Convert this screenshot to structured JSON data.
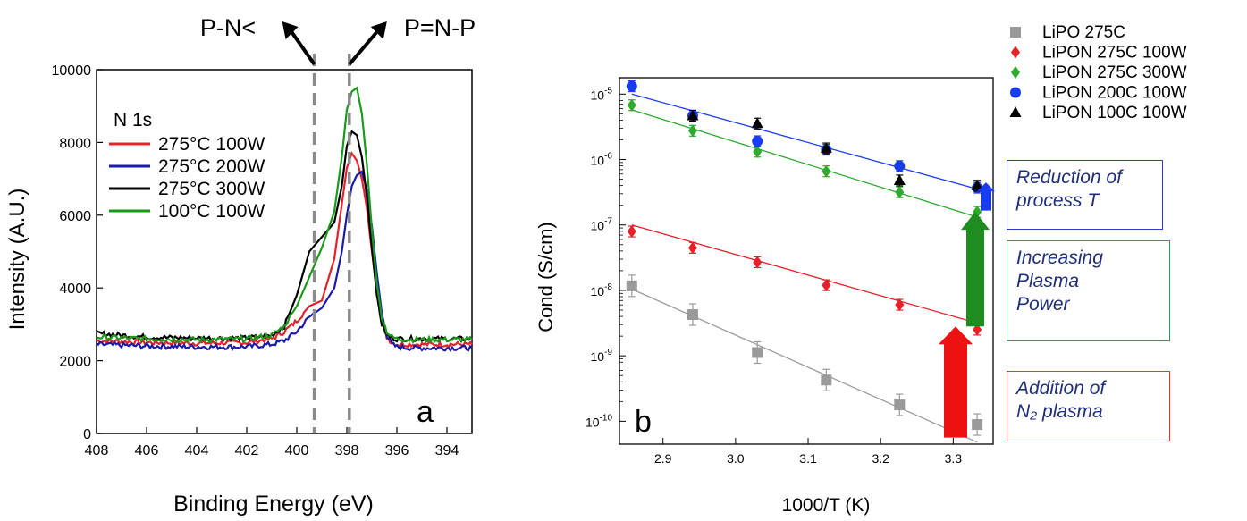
{
  "chart_data": [
    {
      "type": "line",
      "panel_label": "a",
      "inner_label": "N 1s",
      "xlabel": "Binding Energy (eV)",
      "ylabel": "Intensity (A.U.)",
      "xlim": [
        408,
        393
      ],
      "ylim": [
        0,
        10000
      ],
      "x_ticks": [
        "408",
        "406",
        "404",
        "402",
        "400",
        "398",
        "396",
        "394"
      ],
      "y_ticks": [
        "0",
        "2000",
        "4000",
        "6000",
        "8000",
        "10000"
      ],
      "annotations": [
        {
          "text": "P-N<",
          "x": 399.3
        },
        {
          "text": "P=N-P",
          "x": 397.9
        }
      ],
      "series": [
        {
          "name": "275°C 100W",
          "color": "#e8202a",
          "x": [
            408,
            406,
            404,
            402,
            401,
            400.5,
            400,
            399.5,
            399,
            398.5,
            398.2,
            398,
            397.8,
            397.6,
            397.4,
            397.2,
            397,
            396.8,
            396.6,
            396.4,
            396.2,
            396,
            395.5,
            395,
            394,
            393
          ],
          "y": [
            2550,
            2500,
            2480,
            2500,
            2600,
            2800,
            3100,
            3500,
            3650,
            4800,
            6300,
            7300,
            7700,
            7500,
            7000,
            6200,
            5000,
            3900,
            3100,
            2650,
            2500,
            2450,
            2450,
            2450,
            2450,
            2450
          ]
        },
        {
          "name": "275°C 200W",
          "color": "#1a1aa8",
          "x": [
            408,
            406,
            404,
            402,
            401,
            400.5,
            400,
            399.5,
            399,
            398.5,
            398.2,
            398,
            397.8,
            397.6,
            397.4,
            397.2,
            397,
            396.8,
            396.6,
            396.4,
            396.2,
            396,
            395.5,
            395,
            394,
            393
          ],
          "y": [
            2450,
            2400,
            2380,
            2380,
            2450,
            2550,
            2800,
            3200,
            3450,
            4000,
            5000,
            6000,
            6800,
            7100,
            7200,
            6700,
            5700,
            4400,
            3300,
            2700,
            2450,
            2380,
            2350,
            2350,
            2350,
            2350
          ]
        },
        {
          "name": "275°C 300W",
          "color": "#000000",
          "x": [
            408,
            406,
            404,
            402,
            401,
            400.5,
            400,
            399.5,
            399,
            398.5,
            398.2,
            398,
            397.8,
            397.6,
            397.4,
            397.2,
            397,
            396.8,
            396.6,
            396.4,
            396.2,
            396,
            395.5,
            395,
            394,
            393
          ],
          "y": [
            2750,
            2650,
            2620,
            2620,
            2700,
            2950,
            3800,
            5000,
            5400,
            5800,
            6800,
            7900,
            8300,
            8200,
            7600,
            6500,
            5100,
            3800,
            3000,
            2700,
            2620,
            2600,
            2600,
            2600,
            2600,
            2600
          ]
        },
        {
          "name": "100°C 100W",
          "color": "#1a9a1a",
          "x": [
            408,
            406,
            404,
            402,
            401,
            400.5,
            400,
            399.5,
            399,
            398.5,
            398.2,
            398,
            397.8,
            397.6,
            397.4,
            397.2,
            397,
            396.8,
            396.6,
            396.4,
            396.2,
            396,
            395.5,
            395,
            394,
            393
          ],
          "y": [
            2650,
            2600,
            2580,
            2600,
            2700,
            2950,
            3500,
            4300,
            5100,
            6100,
            7600,
            8900,
            9400,
            9500,
            8800,
            7400,
            5600,
            4100,
            3200,
            2800,
            2650,
            2600,
            2580,
            2580,
            2580,
            2580
          ]
        }
      ]
    },
    {
      "type": "scatter",
      "panel_label": "b",
      "xlabel": "1000/T (K)",
      "ylabel": "Cond (S/cm)",
      "y_scale": "log",
      "xlim": [
        2.84,
        3.355
      ],
      "ylim_log10": [
        -10.35,
        -4.75
      ],
      "x_ticks": [
        "2.9",
        "3.0",
        "3.1",
        "3.2",
        "3.3"
      ],
      "y_ticks": [
        {
          "base": "10",
          "exp": "-5",
          "e": -5
        },
        {
          "base": "10",
          "exp": "-6",
          "e": -6
        },
        {
          "base": "10",
          "exp": "-7",
          "e": -7
        },
        {
          "base": "10",
          "exp": "-8",
          "e": -8
        },
        {
          "base": "10",
          "exp": "-9",
          "e": -9
        },
        {
          "base": "10",
          "exp": "-10",
          "e": -10
        }
      ],
      "series": [
        {
          "name": "LiPO 275C",
          "color": "#9a9a9a",
          "marker": "square",
          "x": [
            2.857,
            2.941,
            3.03,
            3.125,
            3.226,
            3.333
          ],
          "log10_y": [
            -7.93,
            -8.37,
            -8.95,
            -9.37,
            -9.75,
            -10.05
          ],
          "fit_log10": [
            -7.98,
            -10.32
          ]
        },
        {
          "name": "LiPON 275C 100W",
          "color": "#e8202a",
          "marker": "diamond",
          "x": [
            2.857,
            2.941,
            3.03,
            3.125,
            3.226,
            3.333
          ],
          "log10_y": [
            -7.1,
            -7.35,
            -7.57,
            -7.92,
            -8.22,
            -8.6
          ],
          "fit_log10": [
            -7.0,
            -8.5
          ]
        },
        {
          "name": "LiPON 275C 300W",
          "color": "#2eaa2e",
          "marker": "diamond",
          "x": [
            2.857,
            2.941,
            3.03,
            3.125,
            3.226,
            3.333
          ],
          "log10_y": [
            -5.17,
            -5.56,
            -5.88,
            -6.18,
            -6.5,
            -6.8
          ],
          "fit_log10": [
            -5.24,
            -6.88
          ]
        },
        {
          "name": "LiPON 200C 100W",
          "color": "#1a3cf0",
          "marker": "circle",
          "x": [
            2.857,
            2.941,
            3.03,
            3.125,
            3.226,
            3.333
          ],
          "log10_y": [
            -4.88,
            -5.33,
            -5.72,
            -5.85,
            -6.1,
            -6.43
          ],
          "fit_log10": [
            -5.0,
            -6.45
          ]
        },
        {
          "name": "LiPON 100C 100W",
          "color": "#000000",
          "marker": "triangle",
          "x": [
            2.941,
            3.03,
            3.125,
            3.226,
            3.333
          ],
          "log10_y": [
            -5.33,
            -5.45,
            -5.83,
            -6.32,
            -6.4
          ],
          "fit_log10": null
        }
      ],
      "arrows": [
        {
          "from_log10": -10.25,
          "to_log10": -8.55,
          "color": "#ee1111"
        },
        {
          "from_log10": -8.55,
          "to_log10": -6.8,
          "color": "#1e8c1e"
        },
        {
          "from_log10": -6.78,
          "to_log10": -6.35,
          "color": "#1a3cf0"
        }
      ],
      "callouts": [
        {
          "lines": [
            "Reduction of",
            "process T"
          ],
          "border": "#2a3cc8"
        },
        {
          "lines": [
            "Increasing",
            "Plasma",
            "Power"
          ],
          "border": "#2e9a5a"
        },
        {
          "lines": [
            "Addition of",
            "N₂ plasma"
          ],
          "border": "#e23a3a"
        }
      ]
    }
  ]
}
